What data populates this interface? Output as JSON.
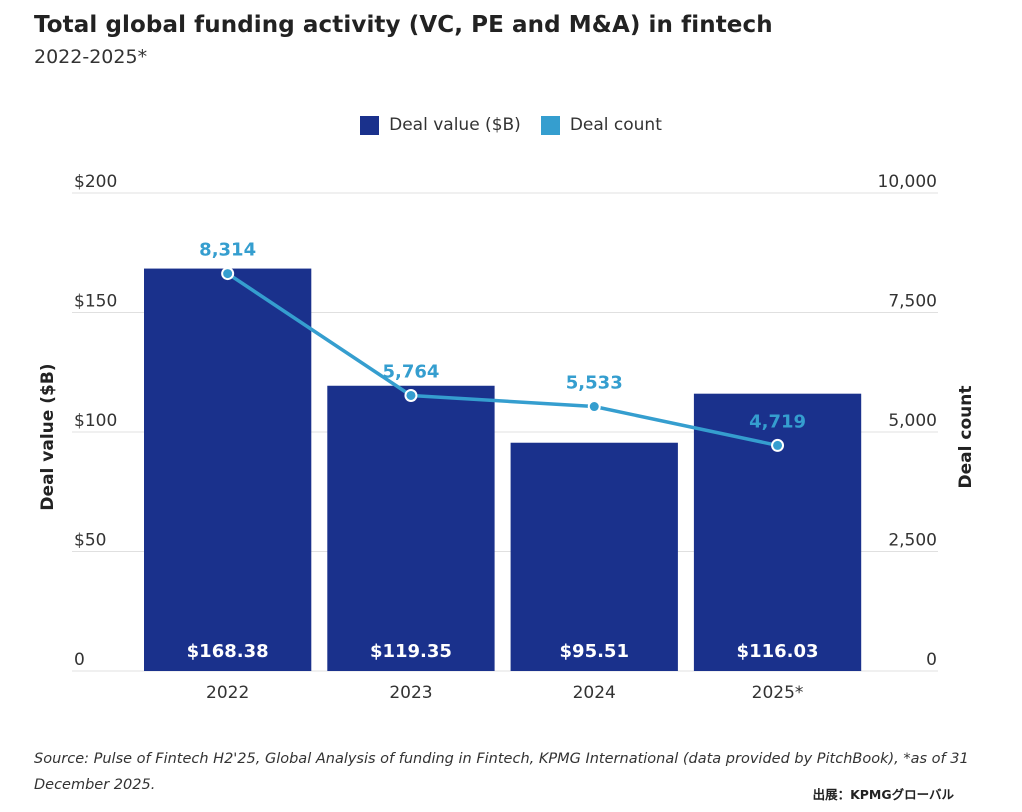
{
  "header": {
    "title": "Total global funding activity (VC, PE and M&A) in fintech",
    "subtitle": "2022-2025*"
  },
  "colors": {
    "bar": "#1a318c",
    "line": "#359ecf",
    "grid": "#e0e0e0",
    "bar_label": "#ffffff"
  },
  "chart_data": {
    "type": "bar",
    "title": "Total global funding activity (VC, PE and M&A) in fintech",
    "subtitle": "2022-2025*",
    "categories": [
      "2022",
      "2023",
      "2024",
      "2025*"
    ],
    "series": [
      {
        "name": "Deal value ($B)",
        "type": "bar",
        "axis": "left",
        "values": [
          168.38,
          119.35,
          95.51,
          116.03
        ],
        "labels": [
          "$168.38",
          "$119.35",
          "$95.51",
          "$116.03"
        ]
      },
      {
        "name": "Deal count",
        "type": "line",
        "axis": "right",
        "values": [
          8314,
          5764,
          5533,
          4719
        ],
        "labels": [
          "8,314",
          "5,764",
          "5,533",
          "4,719"
        ]
      }
    ],
    "ylabel": "Deal value ($B)",
    "y2label": "Deal count",
    "ylim": [
      0,
      200
    ],
    "y2lim": [
      0,
      10000
    ],
    "yticks": [
      "0",
      "$50",
      "$100",
      "$150",
      "$200"
    ],
    "y2ticks": [
      "0",
      "2,500",
      "5,000",
      "7,500",
      "10,000"
    ],
    "legend_position": "top-center",
    "grid": true
  },
  "footer": {
    "source": "Source: Pulse of Fintech H2'25, Global Analysis of funding in Fintech, KPMG International (data provided by PitchBook), *as of 31 December 2025.",
    "credit": "出展：KPMGグローバル"
  }
}
